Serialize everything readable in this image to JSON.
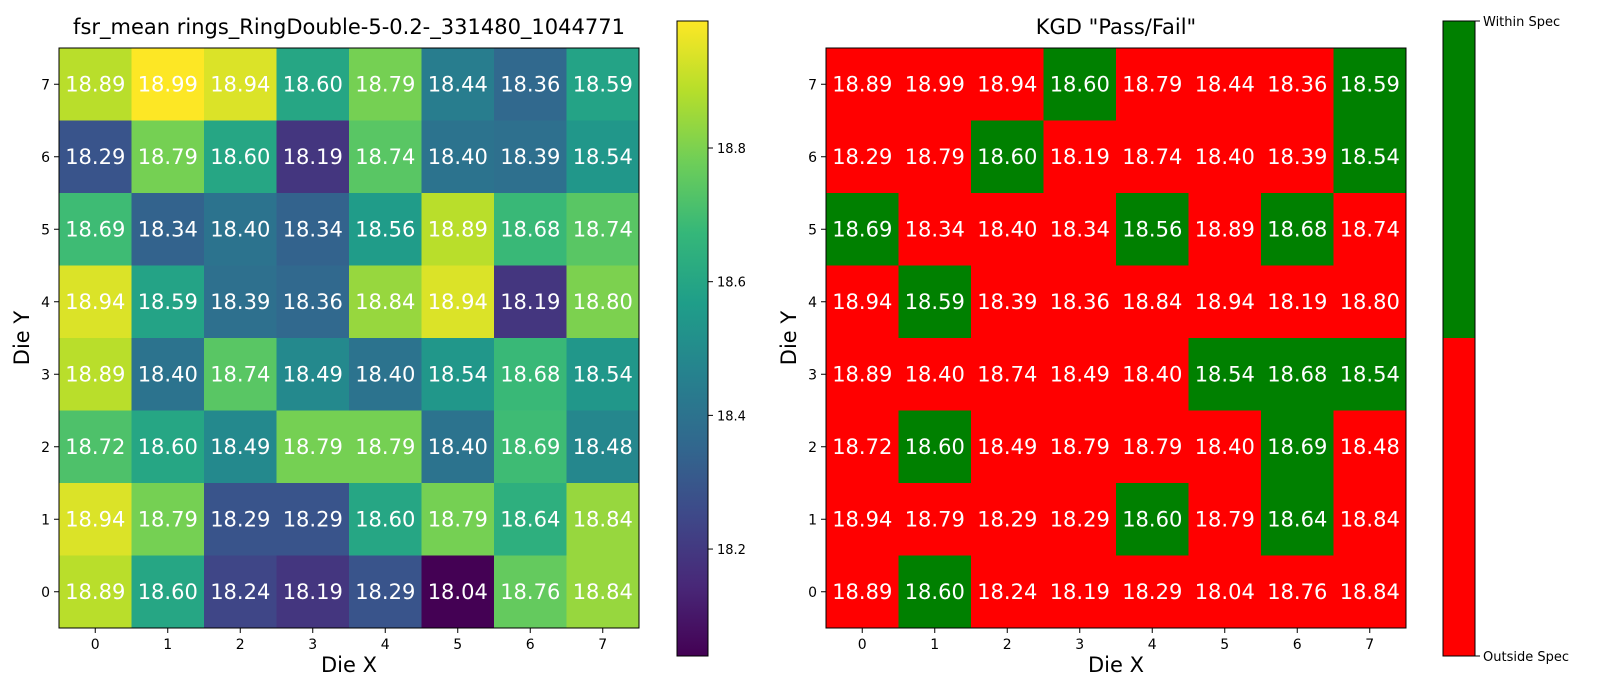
{
  "chart_data": [
    {
      "type": "heatmap",
      "title": "fsr_mean rings_RingDouble-5-0.2-_331480_1044771",
      "xlabel": "Die X",
      "ylabel": "Die Y",
      "x_ticks": [
        "0",
        "1",
        "2",
        "3",
        "4",
        "5",
        "6",
        "7"
      ],
      "y_ticks": [
        "0",
        "1",
        "2",
        "3",
        "4",
        "5",
        "6",
        "7"
      ],
      "colormap": "viridis",
      "colorbar": {
        "range": [
          18.04,
          18.99
        ],
        "ticks": [
          18.2,
          18.4,
          18.6,
          18.8
        ],
        "tick_labels": [
          "18.2",
          "18.4",
          "18.6",
          "18.8"
        ]
      },
      "rows_top_to_bottom": [
        {
          "y": "7",
          "values": [
            "18.89",
            "18.99",
            "18.94",
            "18.60",
            "18.79",
            "18.44",
            "18.36",
            "18.59"
          ]
        },
        {
          "y": "6",
          "values": [
            "18.29",
            "18.79",
            "18.60",
            "18.19",
            "18.74",
            "18.40",
            "18.39",
            "18.54"
          ]
        },
        {
          "y": "5",
          "values": [
            "18.69",
            "18.34",
            "18.40",
            "18.34",
            "18.56",
            "18.89",
            "18.68",
            "18.74"
          ]
        },
        {
          "y": "4",
          "values": [
            "18.94",
            "18.59",
            "18.39",
            "18.36",
            "18.84",
            "18.94",
            "18.19",
            "18.80"
          ]
        },
        {
          "y": "3",
          "values": [
            "18.89",
            "18.40",
            "18.74",
            "18.49",
            "18.40",
            "18.54",
            "18.68",
            "18.54"
          ]
        },
        {
          "y": "2",
          "values": [
            "18.72",
            "18.60",
            "18.49",
            "18.79",
            "18.79",
            "18.40",
            "18.69",
            "18.48"
          ]
        },
        {
          "y": "1",
          "values": [
            "18.94",
            "18.79",
            "18.29",
            "18.29",
            "18.60",
            "18.79",
            "18.64",
            "18.84"
          ]
        },
        {
          "y": "0",
          "values": [
            "18.89",
            "18.60",
            "18.24",
            "18.19",
            "18.29",
            "18.04",
            "18.76",
            "18.84"
          ]
        }
      ]
    },
    {
      "type": "heatmap",
      "title": "KGD \"Pass/Fail\"",
      "xlabel": "Die X",
      "ylabel": "Die Y",
      "x_ticks": [
        "0",
        "1",
        "2",
        "3",
        "4",
        "5",
        "6",
        "7"
      ],
      "y_ticks": [
        "0",
        "1",
        "2",
        "3",
        "4",
        "5",
        "6",
        "7"
      ],
      "pass_color": "#008000",
      "fail_color": "#ff0000",
      "colorbar": {
        "top_label": "Within Spec",
        "bottom_label": "Outside Spec"
      },
      "pass_rows_top_to_bottom": [
        [
          0,
          0,
          0,
          1,
          0,
          0,
          0,
          1
        ],
        [
          0,
          0,
          1,
          0,
          0,
          0,
          0,
          1
        ],
        [
          1,
          0,
          0,
          0,
          1,
          0,
          1,
          0
        ],
        [
          0,
          1,
          0,
          0,
          0,
          0,
          0,
          0
        ],
        [
          0,
          0,
          0,
          0,
          0,
          1,
          1,
          1
        ],
        [
          0,
          1,
          0,
          0,
          0,
          0,
          1,
          0
        ],
        [
          0,
          0,
          0,
          0,
          1,
          0,
          1,
          0
        ],
        [
          0,
          1,
          0,
          0,
          0,
          0,
          0,
          0
        ]
      ]
    }
  ]
}
